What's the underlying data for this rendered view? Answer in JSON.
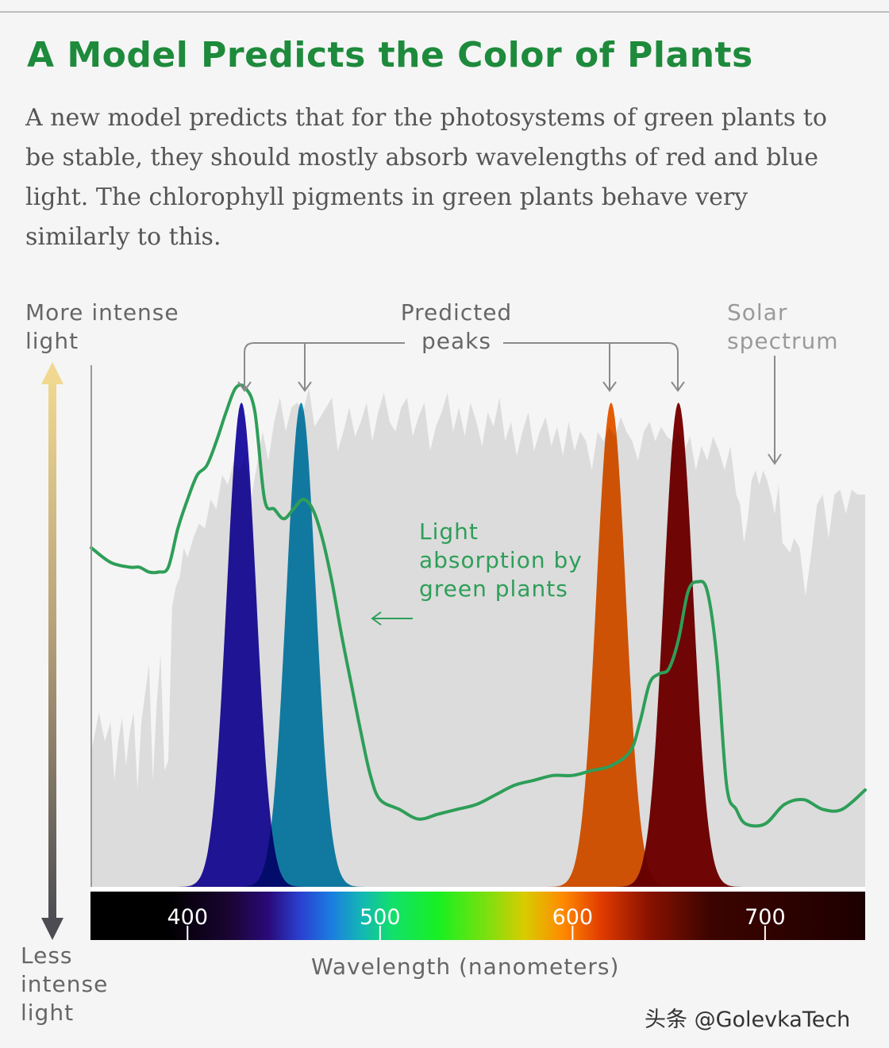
{
  "title": "A Model Predicts the Color of Plants",
  "subtitle": "A new model predicts that for the photosystems of green plants to be stable, they should mostly absorb wavelengths of red and blue light. The chlorophyll pigments in green plants behave very similarly to this.",
  "watermark": "头条 @GolevkaTech",
  "colors": {
    "title": "#1e8a3c",
    "absorption_line": "#2e9e58",
    "solar_fill": "#dcdcdc",
    "peak_400s": "#1f12a8",
    "peak_450s": "#0e8ab8",
    "peak_600s": "#ee5c00",
    "peak_650s": "#7e0000"
  },
  "chart_data": {
    "type": "area",
    "ylabel_top": "More intense light",
    "ylabel_bottom": "Less intense light",
    "xlabel": "Wavelength (nanometers)",
    "xlim": [
      350,
      752
    ],
    "x_ticks": [
      400,
      500,
      600,
      700
    ],
    "ylim": [
      0,
      1
    ],
    "grid": false,
    "annotations": {
      "peaks": "Predicted peaks",
      "solar": "Solar spectrum",
      "absorption": "Light absorption by green plants"
    },
    "peaks": [
      {
        "center": 428,
        "fwhm": 18,
        "height": 1.0,
        "color": "#1f12a8"
      },
      {
        "center": 459,
        "fwhm": 18,
        "height": 1.0,
        "color": "#0e8ab8"
      },
      {
        "center": 620,
        "fwhm": 18,
        "height": 1.0,
        "color": "#ee5c00"
      },
      {
        "center": 655,
        "fwhm": 18,
        "height": 1.0,
        "color": "#7e0000"
      }
    ],
    "series": [
      {
        "name": "Light absorption by green plants",
        "x": [
          350,
          360,
          370,
          375,
          380,
          385,
          390,
          395,
          400,
          405,
          410,
          415,
          420,
          425,
          430,
          435,
          440,
          445,
          450,
          455,
          460,
          465,
          470,
          475,
          480,
          485,
          490,
          495,
          500,
          510,
          520,
          530,
          540,
          550,
          560,
          570,
          580,
          590,
          600,
          610,
          620,
          630,
          635,
          640,
          645,
          650,
          655,
          660,
          665,
          670,
          675,
          680,
          685,
          690,
          700,
          710,
          720,
          730,
          740,
          752
        ],
        "y": [
          0.7,
          0.67,
          0.66,
          0.66,
          0.65,
          0.65,
          0.66,
          0.74,
          0.8,
          0.85,
          0.87,
          0.92,
          0.98,
          1.03,
          1.03,
          0.98,
          0.8,
          0.78,
          0.76,
          0.78,
          0.8,
          0.78,
          0.72,
          0.63,
          0.52,
          0.42,
          0.32,
          0.23,
          0.18,
          0.16,
          0.14,
          0.15,
          0.16,
          0.17,
          0.19,
          0.21,
          0.22,
          0.23,
          0.23,
          0.24,
          0.25,
          0.28,
          0.34,
          0.42,
          0.44,
          0.45,
          0.51,
          0.61,
          0.63,
          0.61,
          0.47,
          0.21,
          0.16,
          0.13,
          0.13,
          0.17,
          0.18,
          0.16,
          0.16,
          0.2
        ]
      },
      {
        "name": "Solar spectrum",
        "x": [
          350,
          354,
          357,
          360,
          362,
          364,
          366,
          368,
          370,
          372,
          374,
          376,
          378,
          380,
          382,
          384,
          386,
          388,
          390,
          392,
          394,
          396,
          398,
          400,
          403,
          406,
          409,
          412,
          415,
          418,
          421,
          424,
          427,
          430,
          433,
          436,
          439,
          442,
          445,
          448,
          451,
          454,
          457,
          460,
          463,
          466,
          469,
          472,
          475,
          478,
          481,
          484,
          487,
          490,
          493,
          496,
          499,
          502,
          505,
          508,
          511,
          514,
          517,
          520,
          523,
          526,
          529,
          532,
          535,
          538,
          541,
          544,
          547,
          550,
          553,
          556,
          559,
          562,
          565,
          568,
          571,
          574,
          577,
          580,
          583,
          586,
          589,
          592,
          595,
          598,
          601,
          604,
          607,
          610,
          613,
          616,
          619,
          622,
          625,
          628,
          631,
          634,
          637,
          640,
          643,
          646,
          649,
          652,
          655,
          658,
          661,
          664,
          667,
          670,
          673,
          676,
          679,
          682,
          685,
          687,
          689,
          691,
          693,
          695,
          697,
          699,
          701,
          703,
          705,
          707,
          709,
          711,
          713,
          715,
          718,
          721,
          724,
          727,
          730,
          733,
          736,
          739,
          742,
          745,
          748,
          752
        ],
        "y": [
          0.28,
          0.36,
          0.3,
          0.34,
          0.22,
          0.3,
          0.35,
          0.25,
          0.32,
          0.36,
          0.2,
          0.34,
          0.4,
          0.46,
          0.22,
          0.38,
          0.48,
          0.24,
          0.26,
          0.58,
          0.62,
          0.64,
          0.7,
          0.68,
          0.72,
          0.75,
          0.74,
          0.8,
          0.78,
          0.85,
          0.83,
          0.88,
          0.86,
          0.89,
          0.8,
          0.87,
          0.94,
          0.88,
          0.96,
          1.01,
          0.94,
          0.99,
          1.0,
          0.98,
          1.03,
          0.95,
          0.97,
          0.99,
          1.01,
          0.9,
          0.94,
          0.99,
          0.93,
          0.96,
          1.0,
          0.92,
          0.98,
          1.02,
          0.96,
          0.94,
          0.99,
          1.01,
          0.93,
          0.97,
          1.0,
          0.9,
          0.95,
          0.98,
          1.02,
          0.94,
          0.99,
          0.93,
          1.0,
          0.96,
          0.91,
          0.98,
          0.95,
          1.01,
          0.92,
          0.96,
          0.89,
          0.94,
          0.98,
          0.9,
          0.94,
          0.97,
          0.91,
          0.95,
          0.89,
          0.96,
          0.9,
          0.94,
          0.92,
          0.86,
          0.94,
          0.92,
          0.95,
          0.93,
          0.97,
          0.94,
          0.92,
          0.88,
          0.94,
          0.96,
          0.92,
          0.95,
          0.93,
          0.92,
          0.94,
          0.9,
          0.93,
          0.86,
          0.91,
          0.88,
          0.93,
          0.9,
          0.86,
          0.91,
          0.81,
          0.79,
          0.71,
          0.76,
          0.84,
          0.86,
          0.83,
          0.86,
          0.84,
          0.81,
          0.77,
          0.83,
          0.71,
          0.7,
          0.69,
          0.72,
          0.7,
          0.6,
          0.69,
          0.79,
          0.81,
          0.72,
          0.81,
          0.82,
          0.77,
          0.82,
          0.81,
          0.81
        ]
      }
    ]
  }
}
